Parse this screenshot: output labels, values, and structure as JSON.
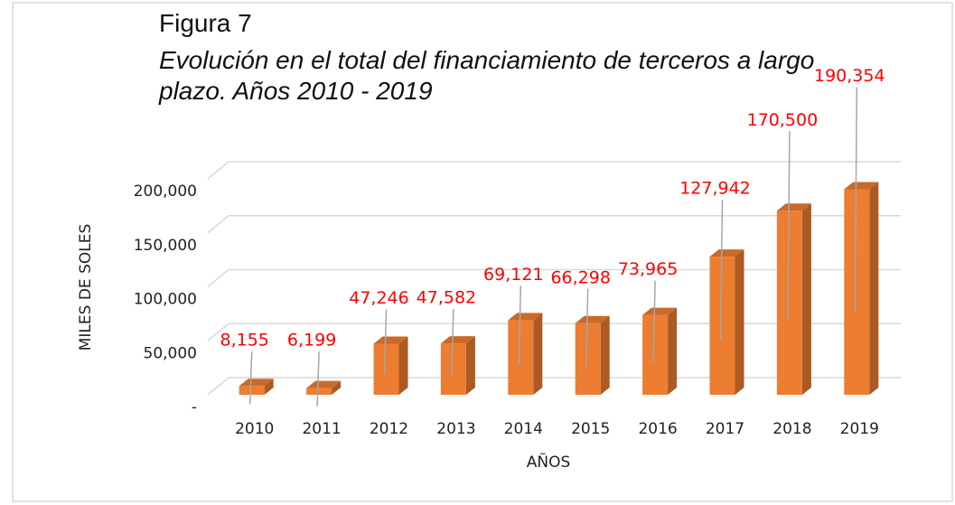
{
  "chart_data": {
    "type": "bar3d",
    "title": "Figura  7",
    "subtitle": "Evolución en el  total del financiamiento de terceros a largo plazo. Años 2010 - 2019",
    "y_label": "MILES DE SOLES",
    "x_label": "AÑOS",
    "categories": [
      "2010",
      "2011",
      "2012",
      "2013",
      "2014",
      "2015",
      "2016",
      "2017",
      "2018",
      "2019"
    ],
    "values": [
      8155,
      6199,
      47246,
      47582,
      69121,
      66298,
      73965,
      127942,
      170500,
      190354
    ],
    "value_labels": [
      "8,155",
      "6,199",
      "47,246",
      "47,582",
      "69,121",
      "66,298",
      "73,965",
      "127,942",
      "170,500",
      "190,354"
    ],
    "color": "#ed7d31",
    "label_color": "#ff0000",
    "ylim": [
      0,
      200000
    ],
    "yticks": [
      {
        "value": 0,
        "label": "-"
      },
      {
        "value": 50000,
        "label": "50,000"
      },
      {
        "value": 100000,
        "label": "100,000"
      },
      {
        "value": 150000,
        "label": "150,000"
      },
      {
        "value": 200000,
        "label": "200,000"
      }
    ],
    "grid": true
  }
}
